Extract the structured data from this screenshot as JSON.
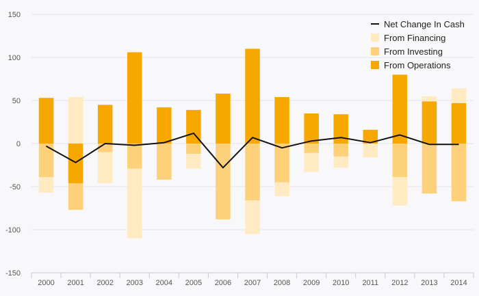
{
  "chart_data": {
    "type": "bar",
    "stacked": true,
    "title": "",
    "xlabel": "",
    "ylabel": "",
    "ylim": [
      -150,
      150
    ],
    "yticks": [
      -150,
      -100,
      -50,
      0,
      50,
      100,
      150
    ],
    "grid": true,
    "legend_position": "top-right",
    "categories": [
      "2000",
      "2001",
      "2002",
      "2003",
      "2004",
      "2005",
      "2006",
      "2007",
      "2008",
      "2009",
      "2010",
      "2011",
      "2012",
      "2013",
      "2014"
    ],
    "series": [
      {
        "name": "From Operations",
        "kind": "bar",
        "color": "#f7a800",
        "values": [
          53,
          -46,
          45,
          106,
          42,
          39,
          58,
          110,
          54,
          35,
          34,
          16,
          80,
          49,
          47
        ]
      },
      {
        "name": "From Investing",
        "kind": "bar",
        "color": "#fdd07a",
        "values": [
          -39,
          -31,
          -10,
          -29,
          -42,
          -12,
          -88,
          -66,
          -45,
          -11,
          -15,
          0,
          -39,
          -58,
          -67
        ]
      },
      {
        "name": "From Financing",
        "kind": "bar",
        "color": "#ffeac2",
        "values": [
          -18,
          54,
          -36,
          -81,
          0,
          -17,
          0,
          -39,
          -16,
          -22,
          -13,
          -16,
          -33,
          6,
          17
        ]
      },
      {
        "name": "Net Change In Cash",
        "kind": "line",
        "color": "#111111",
        "values": [
          -3,
          -22,
          0,
          -2,
          1,
          12,
          -28,
          7,
          -5,
          3,
          7,
          1,
          10,
          -1,
          -1
        ]
      }
    ],
    "legend_order": [
      "Net Change In Cash",
      "From Financing",
      "From Investing",
      "From Operations"
    ]
  }
}
